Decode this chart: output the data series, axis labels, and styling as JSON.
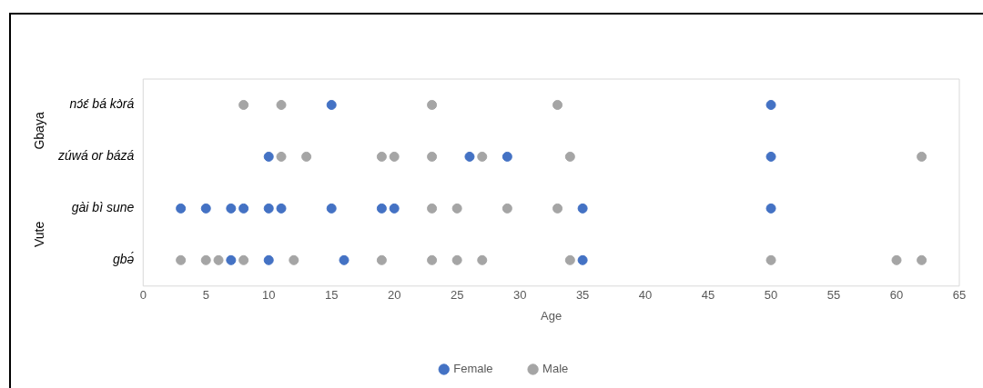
{
  "chart_data": {
    "type": "scatter",
    "orientation": "horizontal",
    "xlabel": "Age",
    "categories": [
      "nɔ́ɛ́ bá kɔ̀rá",
      "zúwá or bázá",
      "gài bì sune",
      "gbə́"
    ],
    "annotations": [
      "Gbaya",
      "Vute"
    ],
    "xlim": [
      0,
      65
    ],
    "xticks": [
      0,
      5,
      10,
      15,
      20,
      25,
      30,
      35,
      40,
      45,
      50,
      55,
      60,
      65
    ],
    "grid": false,
    "legend": "bottom",
    "marker": "circle",
    "series": [
      {
        "name": "Female",
        "color": "#4472c4",
        "values": [
          15,
          50,
          10,
          26,
          29,
          50,
          3,
          5,
          7,
          8,
          10,
          11,
          15,
          19,
          20,
          35,
          50,
          7,
          10,
          16,
          35
        ],
        "x": [
          "nɔ́ɛ́ bá kɔ̀rá",
          "nɔ́ɛ́ bá kɔ̀rá",
          "zúwá or bázá",
          "zúwá or bázá",
          "zúwá or bázá",
          "zúwá or bázá",
          "gài bì sune",
          "gài bì sune",
          "gài bì sune",
          "gài bì sune",
          "gài bì sune",
          "gài bì sune",
          "gài bì sune",
          "gài bì sune",
          "gài bì sune",
          "gài bì sune",
          "gài bì sune",
          "gbə́",
          "gbə́",
          "gbə́",
          "gbə́"
        ]
      },
      {
        "name": "Male",
        "color": "#a5a5a5",
        "values": [
          8,
          11,
          23,
          33,
          11,
          13,
          19,
          20,
          23,
          27,
          34,
          62,
          23,
          25,
          29,
          33,
          3,
          5,
          6,
          8,
          12,
          19,
          23,
          25,
          27,
          34,
          50,
          60,
          62
        ],
        "x": [
          "nɔ́ɛ́ bá kɔ̀rá",
          "nɔ́ɛ́ bá kɔ̀rá",
          "nɔ́ɛ́ bá kɔ̀rá",
          "nɔ́ɛ́ bá kɔ̀rá",
          "zúwá or bázá",
          "zúwá or bázá",
          "zúwá or bázá",
          "zúwá or bázá",
          "zúwá or bázá",
          "zúwá or bázá",
          "zúwá or bázá",
          "zúwá or bázá",
          "gài bì sune",
          "gài bì sune",
          "gài bì sune",
          "gài bì sune",
          "gbə́",
          "gbə́",
          "gbə́",
          "gbə́",
          "gbə́",
          "gbə́",
          "gbə́",
          "gbə́",
          "gbə́",
          "gbə́",
          "gbə́",
          "gbə́",
          "gbə́"
        ]
      }
    ]
  }
}
